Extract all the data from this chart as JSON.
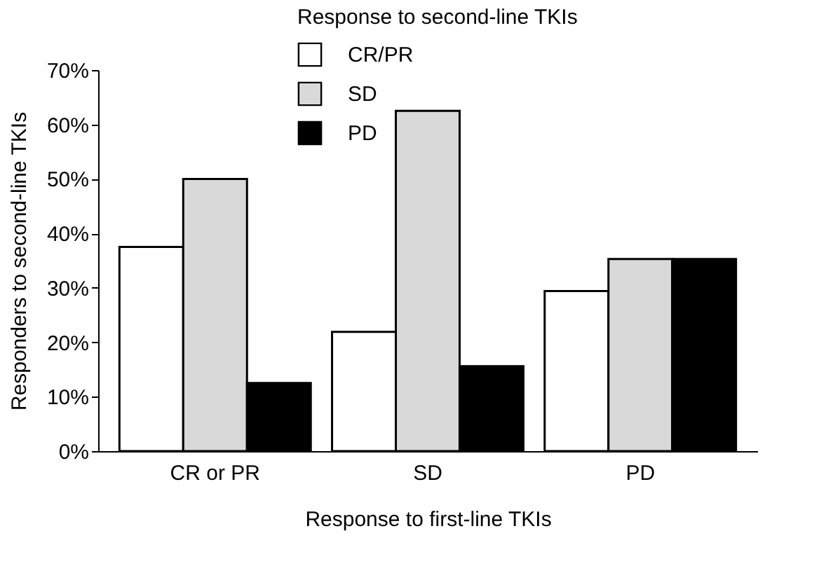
{
  "chart_data": {
    "type": "bar",
    "xlabel": "Response to first-line TKIs",
    "ylabel": "Responders to second-line TKIs",
    "legend_title": "Response to second-line TKIs",
    "categories": [
      "CR or PR",
      "SD",
      "PD"
    ],
    "series": [
      {
        "name": "CR/PR",
        "color": "#ffffff",
        "values": [
          37.5,
          21.9,
          29.4
        ]
      },
      {
        "name": "SD",
        "color": "#d9d9d9",
        "values": [
          50,
          62.5,
          35.3
        ]
      },
      {
        "name": "PD",
        "color": "#000000",
        "values": [
          12.5,
          15.6,
          35.3
        ]
      }
    ],
    "ylim": [
      0,
      70
    ],
    "yticks": [
      {
        "value": 0,
        "label": "0%"
      },
      {
        "value": 10,
        "label": "10%"
      },
      {
        "value": 20,
        "label": "20%"
      },
      {
        "value": 30,
        "label": "30%"
      },
      {
        "value": 40,
        "label": "40%"
      },
      {
        "value": 50,
        "label": "50%"
      },
      {
        "value": 60,
        "label": "60%"
      },
      {
        "value": 70,
        "label": "70%"
      }
    ],
    "grid": false,
    "legend": "top"
  }
}
